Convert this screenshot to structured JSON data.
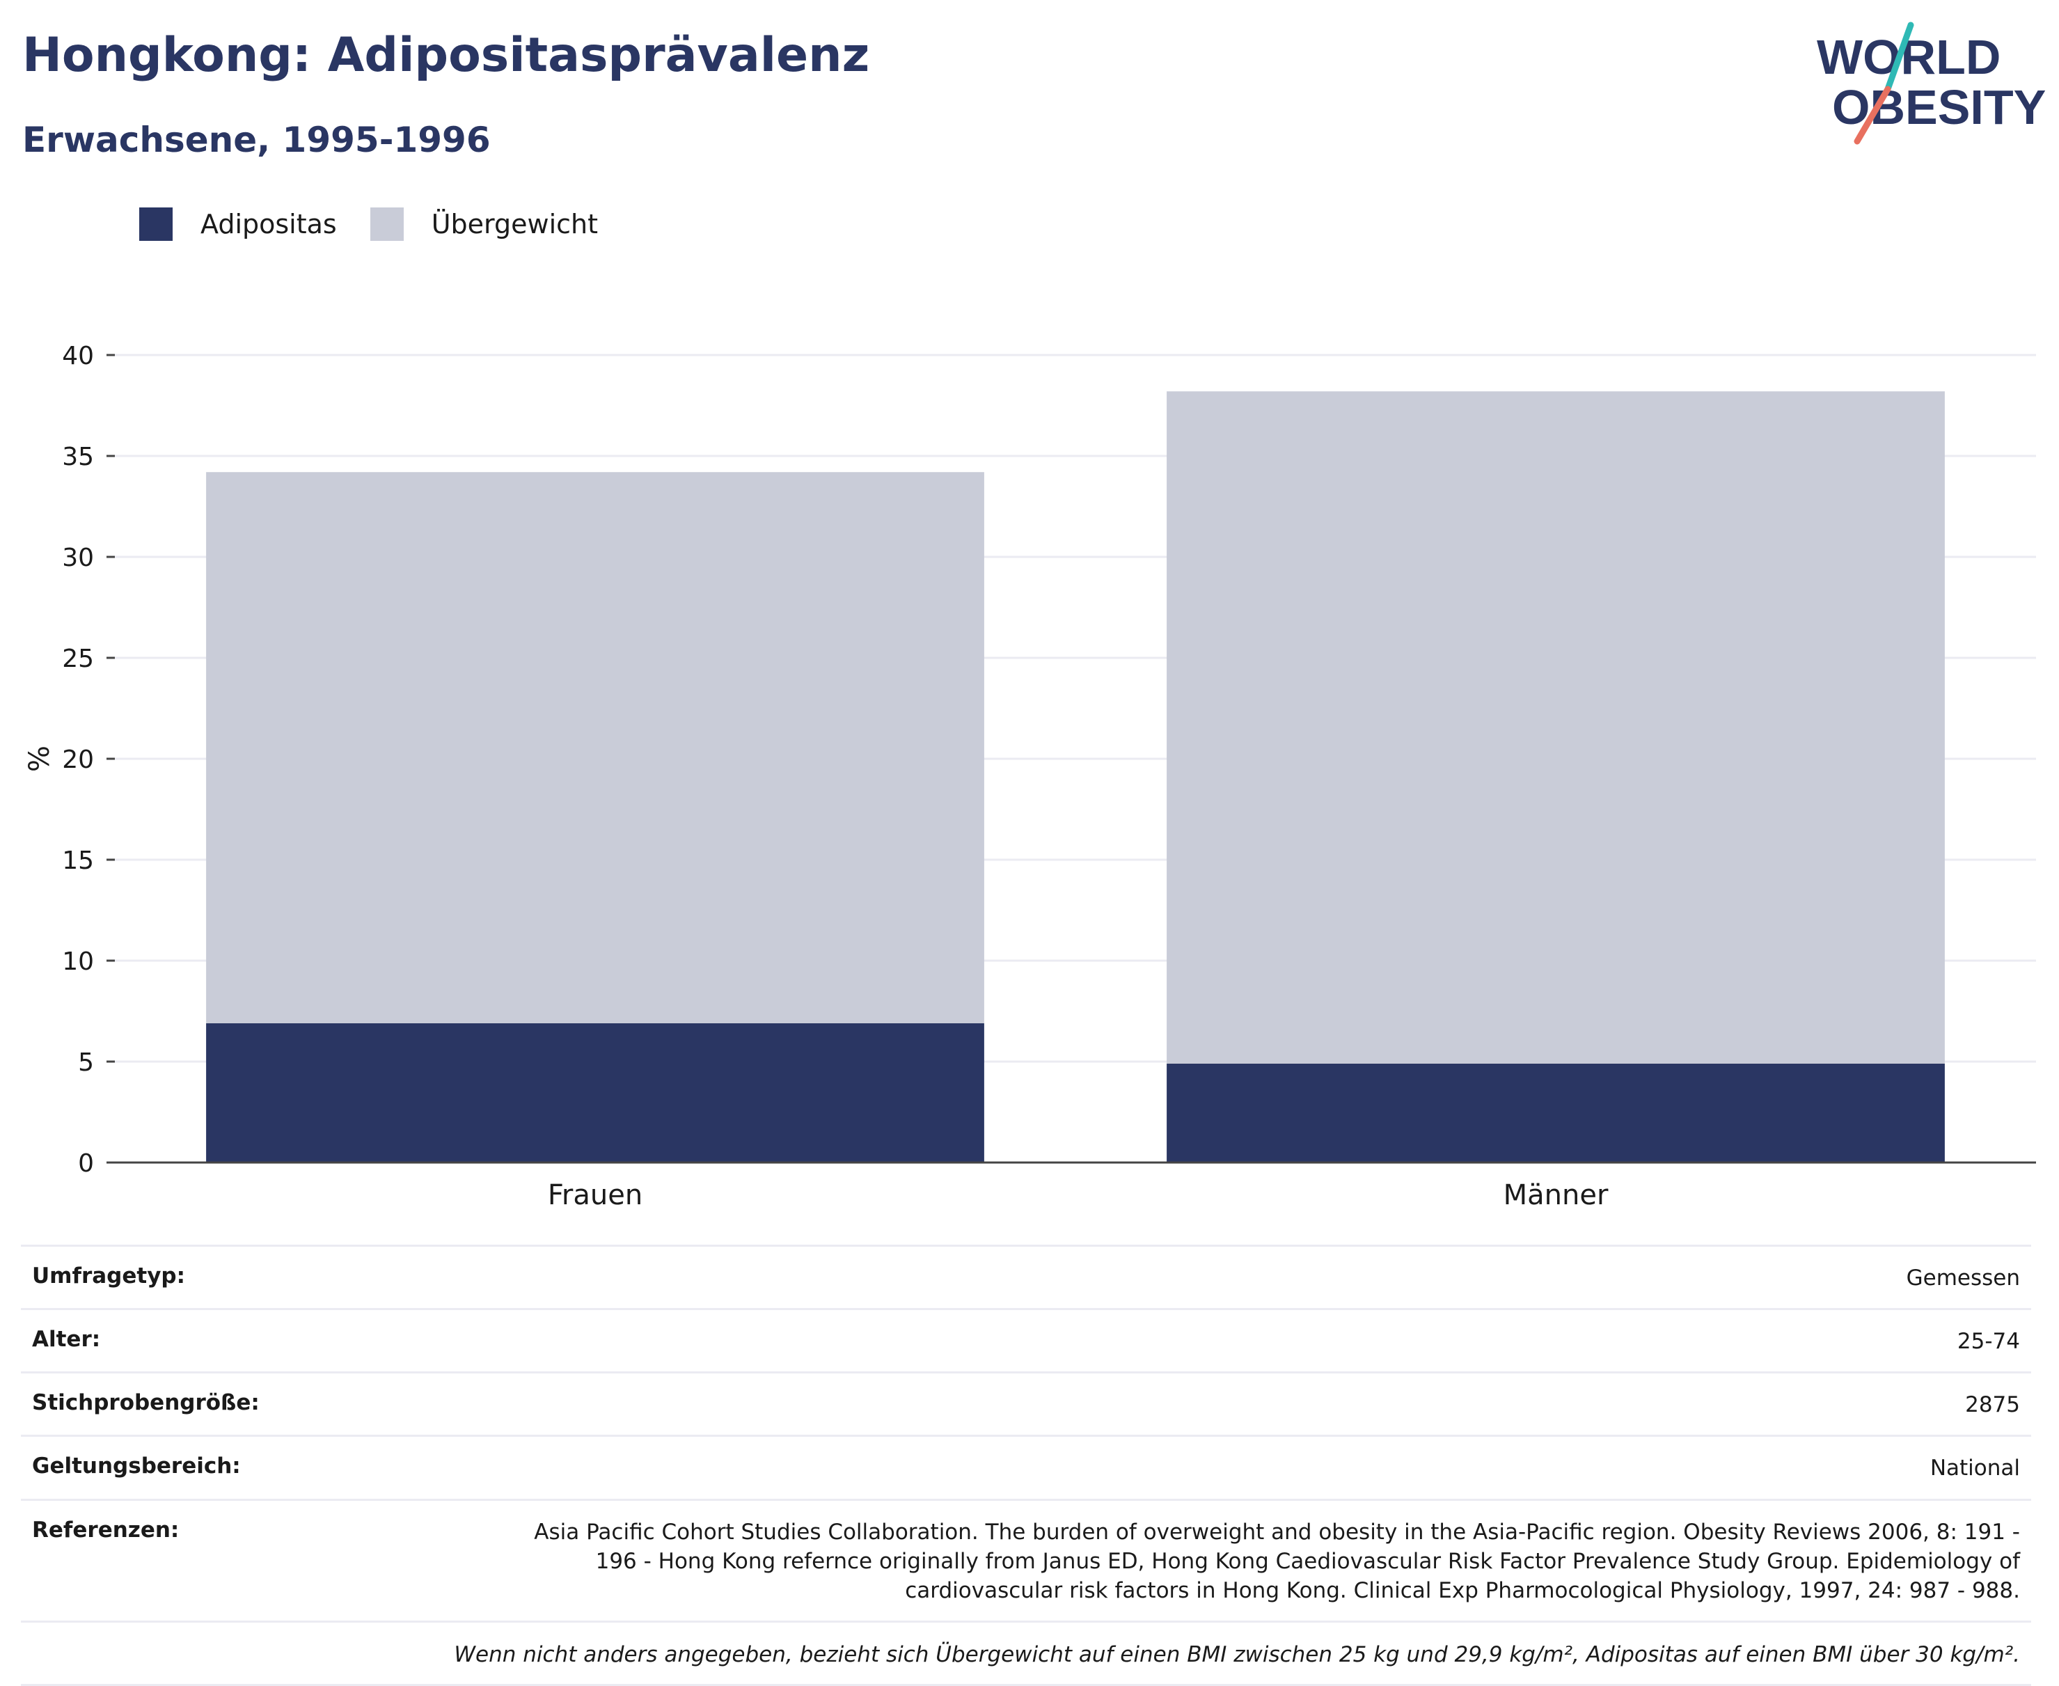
{
  "header": {
    "title": "Hongkong: Adipositasprävalenz",
    "subtitle": "Erwachsene, 1995-1996"
  },
  "logo": {
    "line1": "WORLD",
    "line2": "OBESITY"
  },
  "colors": {
    "brand": "#2a3663",
    "obesity": "#2a3663",
    "overweight": "#c9ccd8",
    "accent_teal": "#2fb9b5",
    "accent_coral": "#e8705f"
  },
  "legend": {
    "items": [
      "Adipositas",
      "Übergewicht"
    ]
  },
  "chart_data": {
    "type": "bar",
    "stacked": true,
    "categories": [
      "Frauen",
      "Männer"
    ],
    "series": [
      {
        "name": "Adipositas",
        "values": [
          6.9,
          4.9
        ]
      },
      {
        "name": "Übergewicht",
        "values": [
          27.3,
          33.3
        ]
      }
    ],
    "ylabel": "%",
    "xlabel": "",
    "ylim": [
      0,
      40
    ],
    "yticks": [
      0,
      5,
      10,
      15,
      20,
      25,
      30,
      35,
      40
    ],
    "grid": true,
    "legend_position": "top-left"
  },
  "meta": {
    "rows": [
      {
        "key": "Umfragetyp:",
        "value": "Gemessen"
      },
      {
        "key": "Alter:",
        "value": "25-74"
      },
      {
        "key": "Stichprobengröße:",
        "value": "2875"
      },
      {
        "key": "Geltungsbereich:",
        "value": "National"
      },
      {
        "key": "Referenzen:",
        "value": "Asia Pacific Cohort Studies Collaboration. The burden of overweight and obesity in the Asia-Pacific region. Obesity Reviews 2006, 8: 191 - 196 - Hong Kong refernce originally from Janus ED, Hong Kong Caediovascular Risk Factor Prevalence Study Group. Epidemiology of cardiovascular risk factors in Hong Kong. Clinical Exp Pharmocological Physiology, 1997, 24: 987 - 988."
      }
    ],
    "note": "Wenn nicht anders angegeben, bezieht sich Übergewicht auf einen BMI zwischen 25 kg und 29,9 kg/m², Adipositas auf einen BMI über 30 kg/m²."
  }
}
